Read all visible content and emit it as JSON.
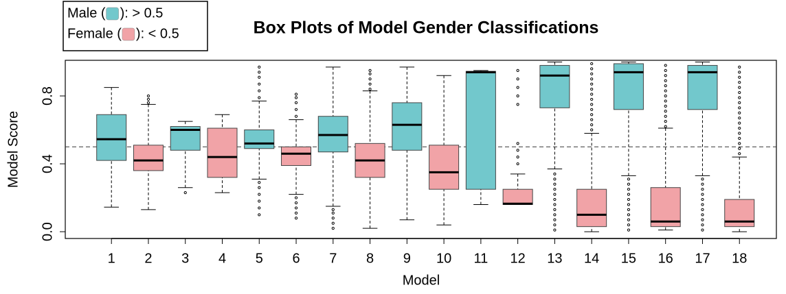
{
  "chart_data": {
    "type": "boxplot",
    "title": "Box Plots of Model Gender Classifications",
    "x_label": "Model",
    "y_label": "Model Score",
    "categories": [
      "1",
      "2",
      "3",
      "4",
      "5",
      "6",
      "7",
      "8",
      "9",
      "10",
      "11",
      "12",
      "13",
      "14",
      "15",
      "16",
      "17",
      "18"
    ],
    "ylim": [
      -0.04,
      1.01
    ],
    "yticks": [
      {
        "value": 0,
        "label": "0.0"
      },
      0.4,
      0.8
    ],
    "threshold": 0.5,
    "legend": [
      {
        "prefix": "Male (",
        "suffix": "): > 0.5",
        "color": "#72c8cc"
      },
      {
        "prefix": "Female (",
        "suffix": "): < 0.5",
        "color": "#f1a3a7"
      }
    ],
    "boxes": [
      {
        "whisker_low": 0.145,
        "q1": 0.42,
        "median": 0.545,
        "q3": 0.69,
        "whisker_high": 0.85,
        "outliers": [],
        "color": "#72c8cc"
      },
      {
        "whisker_low": 0.13,
        "q1": 0.36,
        "median": 0.42,
        "q3": 0.51,
        "whisker_high": 0.75,
        "outliers": [
          0.76,
          0.78,
          0.8
        ],
        "color": "#f1a3a7"
      },
      {
        "whisker_low": 0.26,
        "q1": 0.48,
        "median": 0.6,
        "q3": 0.62,
        "whisker_high": 0.65,
        "outliers": [
          0.23
        ],
        "color": "#72c8cc"
      },
      {
        "whisker_low": 0.23,
        "q1": 0.32,
        "median": 0.44,
        "q3": 0.61,
        "whisker_high": 0.69,
        "outliers": [],
        "color": "#f1a3a7"
      },
      {
        "whisker_low": 0.31,
        "q1": 0.49,
        "median": 0.52,
        "q3": 0.6,
        "whisker_high": 0.77,
        "outliers": [
          0.1,
          0.14,
          0.18,
          0.22,
          0.26,
          0.29,
          0.79,
          0.83,
          0.87,
          0.91,
          0.94,
          0.97
        ],
        "color": "#72c8cc"
      },
      {
        "whisker_low": 0.22,
        "q1": 0.39,
        "median": 0.46,
        "q3": 0.5,
        "whisker_high": 0.66,
        "outliers": [
          0.08,
          0.11,
          0.14,
          0.17,
          0.2,
          0.68,
          0.72,
          0.76,
          0.79,
          0.81
        ],
        "color": "#f1a3a7"
      },
      {
        "whisker_low": 0.15,
        "q1": 0.47,
        "median": 0.57,
        "q3": 0.68,
        "whisker_high": 0.97,
        "outliers": [
          0.02,
          0.05,
          0.08,
          0.11,
          0.13
        ],
        "color": "#72c8cc"
      },
      {
        "whisker_low": 0.02,
        "q1": 0.32,
        "median": 0.42,
        "q3": 0.52,
        "whisker_high": 0.83,
        "outliers": [
          0.84,
          0.87,
          0.9,
          0.93,
          0.95
        ],
        "color": "#f1a3a7"
      },
      {
        "whisker_low": 0.07,
        "q1": 0.48,
        "median": 0.63,
        "q3": 0.76,
        "whisker_high": 0.97,
        "outliers": [],
        "color": "#72c8cc"
      },
      {
        "whisker_low": 0.04,
        "q1": 0.25,
        "median": 0.35,
        "q3": 0.51,
        "whisker_high": 0.92,
        "outliers": [],
        "color": "#f1a3a7"
      },
      {
        "whisker_low": 0.16,
        "q1": 0.25,
        "median": 0.94,
        "q3": 0.945,
        "whisker_high": 0.95,
        "outliers": [],
        "color": "#72c8cc"
      },
      {
        "whisker_low": 0.16,
        "q1": 0.16,
        "median": 0.165,
        "q3": 0.25,
        "whisker_high": 0.34,
        "outliers": [
          0.4,
          0.44,
          0.48,
          0.52,
          0.75,
          0.8,
          0.85,
          0.9,
          0.95
        ],
        "color": "#f1a3a7"
      },
      {
        "whisker_low": 0.37,
        "q1": 0.73,
        "median": 0.92,
        "q3": 0.98,
        "whisker_high": 1.0,
        "outliers": [
          0.01,
          0.04,
          0.07,
          0.1,
          0.13,
          0.16,
          0.19,
          0.22,
          0.25,
          0.28,
          0.31,
          0.34
        ],
        "color": "#72c8cc"
      },
      {
        "whisker_low": 0.0,
        "q1": 0.03,
        "median": 0.1,
        "q3": 0.25,
        "whisker_high": 0.58,
        "outliers": [
          0.6,
          0.63,
          0.66,
          0.69,
          0.72,
          0.75,
          0.78,
          0.81,
          0.84,
          0.87,
          0.9,
          0.93,
          0.96,
          0.99
        ],
        "color": "#f1a3a7"
      },
      {
        "whisker_low": 0.33,
        "q1": 0.72,
        "median": 0.94,
        "q3": 0.99,
        "whisker_high": 1.0,
        "outliers": [
          0.01,
          0.04,
          0.07,
          0.1,
          0.13,
          0.16,
          0.19,
          0.22,
          0.25,
          0.28,
          0.31
        ],
        "color": "#72c8cc"
      },
      {
        "whisker_low": 0.01,
        "q1": 0.03,
        "median": 0.06,
        "q3": 0.26,
        "whisker_high": 0.61,
        "outliers": [
          0.62,
          0.65,
          0.68,
          0.71,
          0.74,
          0.77,
          0.8,
          0.83,
          0.86,
          0.89,
          0.92,
          0.95,
          0.98
        ],
        "color": "#f1a3a7"
      },
      {
        "whisker_low": 0.33,
        "q1": 0.72,
        "median": 0.94,
        "q3": 0.98,
        "whisker_high": 1.0,
        "outliers": [
          0.01,
          0.04,
          0.07,
          0.1,
          0.13,
          0.16,
          0.19,
          0.22,
          0.25,
          0.28,
          0.31
        ],
        "color": "#72c8cc"
      },
      {
        "whisker_low": 0.0,
        "q1": 0.03,
        "median": 0.06,
        "q3": 0.19,
        "whisker_high": 0.44,
        "outliers": [
          0.46,
          0.49,
          0.52,
          0.55,
          0.58,
          0.61,
          0.64,
          0.67,
          0.7,
          0.73,
          0.76,
          0.79,
          0.82,
          0.85,
          0.88,
          0.91,
          0.94,
          0.97
        ],
        "color": "#f1a3a7"
      }
    ]
  }
}
